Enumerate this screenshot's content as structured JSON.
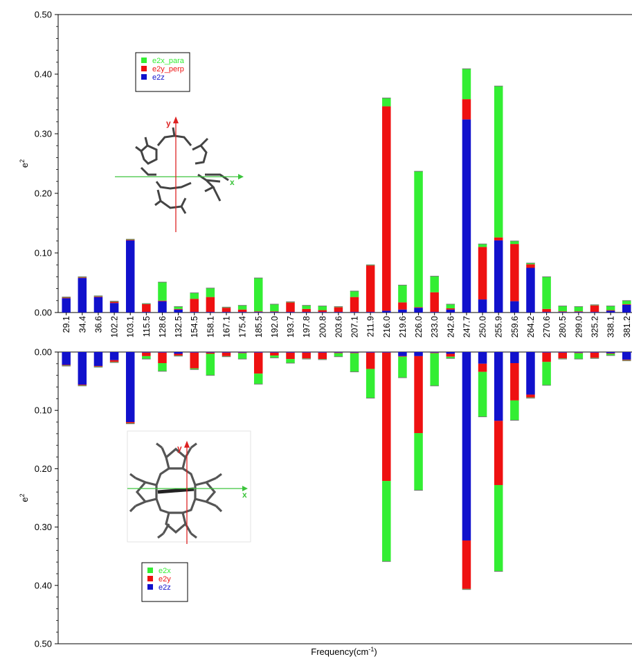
{
  "chart_data": {
    "type": "bar",
    "categories": [
      "29.1",
      "34.4",
      "36.6",
      "102.2",
      "103.1",
      "115.5",
      "128.6",
      "132.5",
      "154.5",
      "158.1",
      "167.1",
      "175.4",
      "185.5",
      "192.0",
      "193.7",
      "197.8",
      "200.8",
      "203.6",
      "207.1",
      "211.9",
      "216.0",
      "219.6",
      "226.0",
      "233.0",
      "242.6",
      "247.7",
      "250.0",
      "255.9",
      "259.6",
      "264.2",
      "270.6",
      "280.5",
      "299.0",
      "325.2",
      "338.1",
      "381.2"
    ],
    "xlabel": "Frequency(cm",
    "xlabel_sup": "-1",
    "xlabel_end": ")",
    "panels": [
      {
        "name": "top",
        "ylabel": "e",
        "ylabel_sup": "2",
        "ylim": [
          0,
          0.5
        ],
        "y_direction": "up",
        "ticks": [
          "0.00",
          "0.10",
          "0.20",
          "0.30",
          "0.40",
          "0.50"
        ],
        "legend": [
          {
            "name": "e2x_para",
            "color": "#33ee33"
          },
          {
            "name": "e2y_perp",
            "color": "#ee1111"
          },
          {
            "name": "e2z",
            "color": "#1111cc"
          }
        ],
        "stack_order": [
          "e2z",
          "e2y_perp",
          "e2x_para"
        ],
        "series": [
          {
            "name": "e2x_para",
            "values": [
              0.001,
              0.001,
              0.001,
              0.001,
              0.001,
              0.001,
              0.031,
              0.004,
              0.01,
              0.015,
              0.001,
              0.007,
              0.056,
              0.012,
              0.001,
              0.006,
              0.007,
              0.001,
              0.01,
              0.001,
              0.014,
              0.029,
              0.228,
              0.027,
              0.007,
              0.051,
              0.005,
              0.254,
              0.005,
              0.002,
              0.054,
              0.009,
              0.008,
              0.001,
              0.007,
              0.006
            ]
          },
          {
            "name": "e2y_perp",
            "values": [
              0.001,
              0.001,
              0.001,
              0.002,
              0.001,
              0.013,
              0.001,
              0.001,
              0.022,
              0.025,
              0.007,
              0.004,
              0.001,
              0.001,
              0.016,
              0.005,
              0.003,
              0.008,
              0.025,
              0.078,
              0.343,
              0.012,
              0.001,
              0.033,
              0.002,
              0.034,
              0.088,
              0.005,
              0.096,
              0.006,
              0.005,
              0.001,
              0.001,
              0.011,
              0.001,
              0.001
            ]
          },
          {
            "name": "e2z",
            "values": [
              0.024,
              0.058,
              0.026,
              0.016,
              0.121,
              0.001,
              0.019,
              0.005,
              0.001,
              0.001,
              0.001,
              0.001,
              0.001,
              0.001,
              0.001,
              0.001,
              0.001,
              0.001,
              0.001,
              0.001,
              0.003,
              0.005,
              0.008,
              0.001,
              0.005,
              0.324,
              0.022,
              0.121,
              0.019,
              0.075,
              0.001,
              0.001,
              0.001,
              0.001,
              0.003,
              0.013
            ]
          }
        ]
      },
      {
        "name": "bottom",
        "ylabel": "e",
        "ylabel_sup": "2",
        "ylim": [
          0,
          0.5
        ],
        "y_direction": "down",
        "ticks": [
          "0.00",
          "0.10",
          "0.20",
          "0.30",
          "0.40",
          "0.50"
        ],
        "legend": [
          {
            "name": "e2x",
            "color": "#33ee33"
          },
          {
            "name": "e2y",
            "color": "#ee1111"
          },
          {
            "name": "e2z",
            "color": "#1111cc"
          }
        ],
        "stack_order": [
          "e2z",
          "e2y",
          "e2x"
        ],
        "series": [
          {
            "name": "e2x",
            "values": [
              0.001,
              0.001,
              0.001,
              0.001,
              0.001,
              0.005,
              0.014,
              0.001,
              0.002,
              0.037,
              0.001,
              0.01,
              0.018,
              0.004,
              0.007,
              0.001,
              0.001,
              0.006,
              0.032,
              0.05,
              0.138,
              0.036,
              0.098,
              0.056,
              0.003,
              0.001,
              0.077,
              0.148,
              0.034,
              0.001,
              0.04,
              0.001,
              0.01,
              0.001,
              0.003,
              0.001
            ]
          },
          {
            "name": "e2y",
            "values": [
              0.001,
              0.001,
              0.001,
              0.003,
              0.002,
              0.006,
              0.018,
              0.003,
              0.027,
              0.002,
              0.006,
              0.001,
              0.036,
              0.005,
              0.011,
              0.01,
              0.011,
              0.001,
              0.001,
              0.028,
              0.22,
              0.001,
              0.132,
              0.001,
              0.005,
              0.083,
              0.014,
              0.11,
              0.064,
              0.005,
              0.016,
              0.01,
              0.001,
              0.009,
              0.001,
              0.001
            ]
          },
          {
            "name": "e2z",
            "values": [
              0.022,
              0.056,
              0.024,
              0.014,
              0.12,
              0.001,
              0.001,
              0.003,
              0.001,
              0.001,
              0.001,
              0.001,
              0.001,
              0.001,
              0.001,
              0.001,
              0.001,
              0.001,
              0.001,
              0.001,
              0.001,
              0.007,
              0.007,
              0.001,
              0.003,
              0.323,
              0.02,
              0.118,
              0.019,
              0.073,
              0.001,
              0.001,
              0.001,
              0.001,
              0.002,
              0.013
            ]
          }
        ]
      }
    ],
    "insets": [
      {
        "panel": "top",
        "axis_labels": [
          "y",
          "x"
        ]
      },
      {
        "panel": "bottom",
        "axis_labels": [
          "y",
          "x"
        ]
      }
    ]
  }
}
